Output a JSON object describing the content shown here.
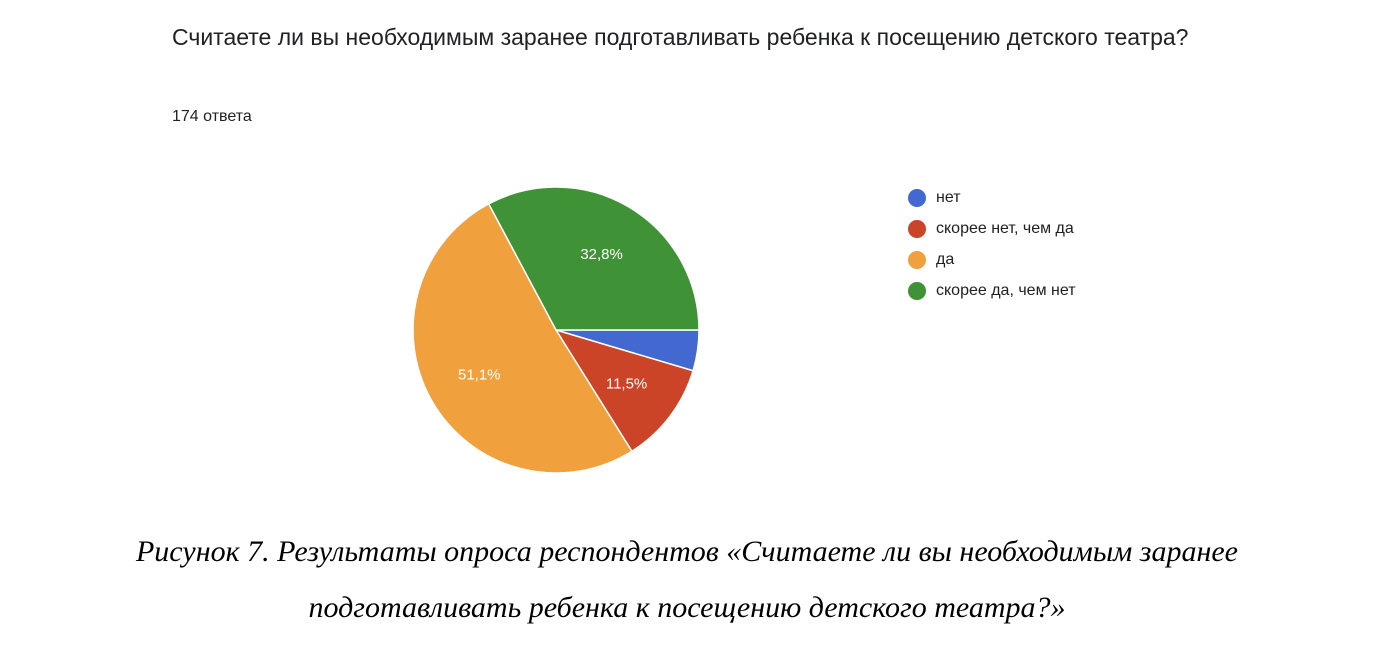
{
  "question": "Считаете ли вы необходимым заранее подготавливать ребенка к посещению детского театра?",
  "response_count": "174 ответа",
  "caption": {
    "line1": "Рисунок 7. Результаты опроса респондентов «Считаете ли вы необходимым заранее",
    "line2": "подготавливать ребенка к посещению детского театра?»"
  },
  "chart_data": {
    "type": "pie",
    "legend_position": "right",
    "slices": [
      {
        "label": "нет",
        "value": 4.6,
        "color": "#4368cf",
        "display": ""
      },
      {
        "label": "скорее нет, чем да",
        "value": 11.5,
        "color": "#cc4428",
        "display": "11,5%"
      },
      {
        "label": "да",
        "value": 51.1,
        "color": "#f0a03c",
        "display": "51,1%"
      },
      {
        "label": "скорее да, чем нет",
        "value": 32.8,
        "color": "#3f9235",
        "display": "32,8%"
      }
    ]
  }
}
